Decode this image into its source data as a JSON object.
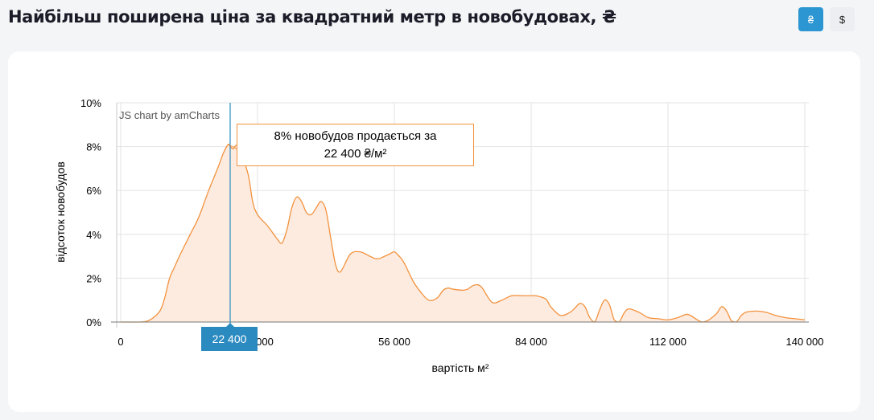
{
  "header": {
    "title": "Найбільш поширена ціна за квадратний метр в новобудовах, ₴",
    "currency_uah": "₴",
    "currency_usd": "$"
  },
  "chart_credit": "JS chart by amCharts",
  "tooltip": {
    "line1": "8% новобудов продається за",
    "line2": "22 400 ₴/м²"
  },
  "cursor_label": "22 400",
  "colors": {
    "accent": "#2b96d1",
    "series_line": "#f2923d",
    "series_fill": "#fdebe0",
    "cursor": "#2b8bc0"
  },
  "chart_data": {
    "type": "area",
    "xlabel": "вартість м²",
    "ylabel": "відсоток новобудов",
    "xlim": [
      0,
      140000
    ],
    "ylim": [
      0,
      10
    ],
    "x_ticks": [
      0,
      28000,
      56000,
      84000,
      112000,
      140000
    ],
    "x_tick_labels": [
      "0",
      "28 000",
      "56 000",
      "84 000",
      "112 000",
      "140 000"
    ],
    "y_ticks": [
      0,
      2,
      4,
      6,
      8,
      10
    ],
    "y_tick_labels": [
      "0%",
      "2%",
      "4%",
      "6%",
      "8%",
      "10%"
    ],
    "grid": true,
    "cursor_x": 22400,
    "series": [
      {
        "x": [
          0,
          4000,
          6000,
          8000,
          9000,
          10000,
          11000,
          12000,
          14000,
          16000,
          18000,
          20000,
          21000,
          22000,
          22400,
          23000,
          24000,
          26000,
          27000,
          28000,
          30000,
          31000,
          32000,
          33000,
          34000,
          35000,
          36000,
          37000,
          38000,
          39000,
          40000,
          41000,
          42000,
          43000,
          44000,
          45000,
          47000,
          49000,
          51000,
          52000,
          53000,
          54000,
          55000,
          56000,
          57000,
          58000,
          60000,
          62000,
          63000,
          64000,
          65000,
          66000,
          67000,
          68000,
          70000,
          71000,
          72000,
          73000,
          74000,
          76000,
          78000,
          80000,
          82000,
          83000,
          84000,
          85000,
          87000,
          88000,
          90000,
          92000,
          93000,
          94000,
          95000,
          96000,
          97000,
          98000,
          99000,
          100000,
          101000,
          102000,
          103000,
          104000,
          106000,
          108000,
          110000,
          112000,
          114000,
          116000,
          118000,
          119000,
          120000,
          121000,
          122000,
          123000,
          124000,
          125000,
          126000,
          127000,
          128000,
          130000,
          132000,
          134000,
          136000,
          138000,
          140000
        ],
        "y": [
          0,
          0,
          0.1,
          0.5,
          1.1,
          2.0,
          2.5,
          3.0,
          3.9,
          4.8,
          6.0,
          7.1,
          7.7,
          8.1,
          8.0,
          7.9,
          8.0,
          6.8,
          5.5,
          4.9,
          4.4,
          4.1,
          3.8,
          3.6,
          4.2,
          5.2,
          5.7,
          5.5,
          5.0,
          4.9,
          5.2,
          5.5,
          5.1,
          3.8,
          2.6,
          2.3,
          3.1,
          3.2,
          3.0,
          2.9,
          2.9,
          3.0,
          3.1,
          3.2,
          3.0,
          2.7,
          1.8,
          1.2,
          1.0,
          1.0,
          1.15,
          1.45,
          1.55,
          1.5,
          1.45,
          1.5,
          1.65,
          1.7,
          1.55,
          0.9,
          1.0,
          1.2,
          1.2,
          1.2,
          1.2,
          1.2,
          1.05,
          0.7,
          0.3,
          0.45,
          0.65,
          0.85,
          0.7,
          0.2,
          0,
          0.55,
          1.0,
          0.8,
          0.1,
          0,
          0.4,
          0.6,
          0.45,
          0.2,
          0.15,
          0.1,
          0.2,
          0.35,
          0.1,
          0,
          0.05,
          0.2,
          0.4,
          0.7,
          0.5,
          0.05,
          0,
          0.3,
          0.45,
          0.5,
          0.45,
          0.3,
          0.2,
          0.15,
          0.1
        ]
      }
    ]
  }
}
